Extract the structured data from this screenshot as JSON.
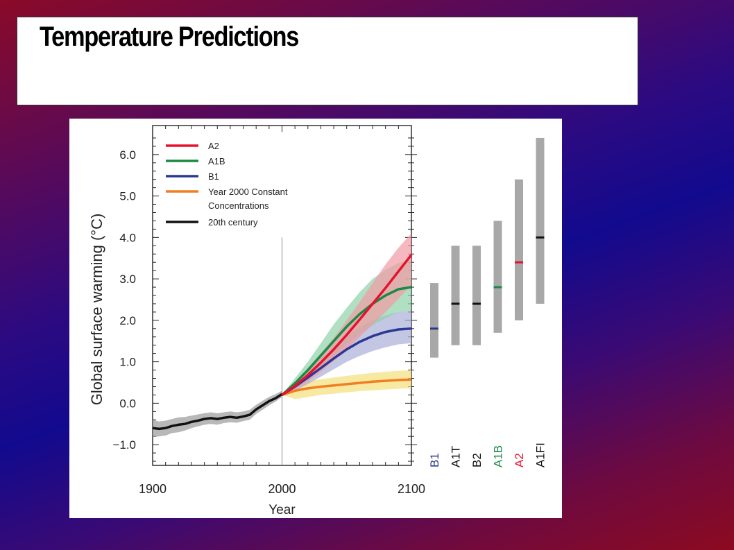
{
  "slide": {
    "title": "Temperature Predictions"
  },
  "chart_data": {
    "type": "line",
    "xlabel": "Year",
    "ylabel": "Global surface warming (°C)",
    "xlim": [
      1900,
      2100
    ],
    "ylim": [
      -1.5,
      6.7
    ],
    "x_ticks": [
      1900,
      2000,
      2100
    ],
    "y_ticks": [
      {
        "v": -1.0,
        "label": "−1.0"
      },
      {
        "v": 0.0,
        "label": "0.0"
      },
      {
        "v": 1.0,
        "label": "1.0"
      },
      {
        "v": 2.0,
        "label": "2.0"
      },
      {
        "v": 3.0,
        "label": "3.0"
      },
      {
        "v": 4.0,
        "label": "4.0"
      },
      {
        "v": 5.0,
        "label": "5.0"
      },
      {
        "v": 6.0,
        "label": "6.0"
      }
    ],
    "marker_year": 2000,
    "grid": false,
    "legend_position": "top-left",
    "series": [
      {
        "name": "A2",
        "color": "#e8112d",
        "band_color": "#f29aa4",
        "x": [
          2000,
          2010,
          2020,
          2030,
          2040,
          2050,
          2060,
          2070,
          2080,
          2090,
          2100
        ],
        "y": [
          0.2,
          0.42,
          0.68,
          0.98,
          1.3,
          1.65,
          2.02,
          2.4,
          2.78,
          3.18,
          3.58
        ],
        "lower": [
          0.2,
          0.32,
          0.52,
          0.76,
          1.02,
          1.3,
          1.6,
          1.9,
          2.2,
          2.52,
          2.85
        ],
        "upper": [
          0.2,
          0.52,
          0.84,
          1.2,
          1.58,
          2.0,
          2.44,
          2.9,
          3.35,
          3.75,
          4.1
        ]
      },
      {
        "name": "A1B",
        "color": "#1a8a46",
        "band_color": "#8fd1a8",
        "x": [
          2000,
          2010,
          2020,
          2030,
          2040,
          2050,
          2060,
          2070,
          2080,
          2090,
          2100
        ],
        "y": [
          0.2,
          0.48,
          0.8,
          1.15,
          1.5,
          1.85,
          2.15,
          2.4,
          2.6,
          2.75,
          2.8
        ],
        "lower": [
          0.2,
          0.36,
          0.6,
          0.88,
          1.15,
          1.42,
          1.66,
          1.88,
          2.05,
          2.2,
          2.25
        ],
        "upper": [
          0.2,
          0.6,
          1.0,
          1.45,
          1.9,
          2.3,
          2.68,
          3.0,
          3.22,
          3.38,
          3.45
        ]
      },
      {
        "name": "B1",
        "color": "#2b3990",
        "band_color": "#a9afd8",
        "x": [
          2000,
          2010,
          2020,
          2030,
          2040,
          2050,
          2060,
          2070,
          2080,
          2090,
          2100
        ],
        "y": [
          0.2,
          0.4,
          0.62,
          0.85,
          1.08,
          1.3,
          1.48,
          1.62,
          1.72,
          1.78,
          1.8
        ],
        "lower": [
          0.2,
          0.3,
          0.46,
          0.64,
          0.82,
          1.0,
          1.14,
          1.26,
          1.35,
          1.42,
          1.45
        ],
        "upper": [
          0.2,
          0.5,
          0.8,
          1.08,
          1.36,
          1.62,
          1.84,
          2.0,
          2.12,
          2.2,
          2.25
        ]
      },
      {
        "name": "Year 2000 Constant Concentrations",
        "color": "#f07f22",
        "band_color": "#f3e07a",
        "x": [
          2000,
          2010,
          2020,
          2030,
          2040,
          2050,
          2060,
          2070,
          2080,
          2090,
          2100
        ],
        "y": [
          0.2,
          0.3,
          0.36,
          0.4,
          0.43,
          0.46,
          0.49,
          0.52,
          0.54,
          0.56,
          0.57
        ],
        "lower": [
          0.2,
          0.1,
          0.15,
          0.2,
          0.23,
          0.26,
          0.29,
          0.31,
          0.33,
          0.35,
          0.36
        ],
        "upper": [
          0.2,
          0.45,
          0.52,
          0.58,
          0.62,
          0.66,
          0.7,
          0.73,
          0.76,
          0.78,
          0.8
        ]
      },
      {
        "name": "20th century",
        "color": "#111111",
        "band_color": "#9a9a9a",
        "x": [
          1900,
          1905,
          1910,
          1915,
          1920,
          1925,
          1930,
          1935,
          1940,
          1945,
          1950,
          1955,
          1960,
          1965,
          1970,
          1975,
          1980,
          1985,
          1990,
          1995,
          2000
        ],
        "y": [
          -0.6,
          -0.62,
          -0.6,
          -0.55,
          -0.52,
          -0.5,
          -0.45,
          -0.42,
          -0.38,
          -0.36,
          -0.38,
          -0.35,
          -0.33,
          -0.35,
          -0.32,
          -0.28,
          -0.15,
          -0.05,
          0.05,
          0.12,
          0.22
        ],
        "lower": [
          -0.82,
          -0.8,
          -0.78,
          -0.72,
          -0.7,
          -0.66,
          -0.6,
          -0.56,
          -0.52,
          -0.5,
          -0.52,
          -0.48,
          -0.46,
          -0.47,
          -0.43,
          -0.4,
          -0.26,
          -0.16,
          -0.05,
          0.04,
          0.15
        ],
        "upper": [
          -0.4,
          -0.44,
          -0.42,
          -0.38,
          -0.34,
          -0.33,
          -0.3,
          -0.27,
          -0.24,
          -0.22,
          -0.24,
          -0.22,
          -0.2,
          -0.22,
          -0.2,
          -0.16,
          -0.04,
          0.06,
          0.15,
          0.22,
          0.3
        ]
      }
    ],
    "legend": [
      {
        "label": "A2",
        "color": "#e8112d"
      },
      {
        "label": "A1B",
        "color": "#1a8a46"
      },
      {
        "label": "B1",
        "color": "#2b3990"
      },
      {
        "label": "Year 2000 Constant",
        "label2": "Concentrations",
        "color": "#f07f22"
      },
      {
        "label": "20th century",
        "color": "#111111"
      }
    ],
    "scenario_ranges": [
      {
        "name": "B1",
        "low": 1.1,
        "high": 2.9,
        "best": 1.8,
        "color": "#2b3990"
      },
      {
        "name": "A1T",
        "low": 1.4,
        "high": 3.8,
        "best": 2.4,
        "color": "#111111"
      },
      {
        "name": "B2",
        "low": 1.4,
        "high": 3.8,
        "best": 2.4,
        "color": "#111111"
      },
      {
        "name": "A1B",
        "low": 1.7,
        "high": 4.4,
        "best": 2.8,
        "color": "#1a8a46"
      },
      {
        "name": "A2",
        "low": 2.0,
        "high": 5.4,
        "best": 3.4,
        "color": "#e8112d"
      },
      {
        "name": "A1FI",
        "low": 2.4,
        "high": 6.4,
        "best": 4.0,
        "color": "#111111"
      }
    ]
  }
}
